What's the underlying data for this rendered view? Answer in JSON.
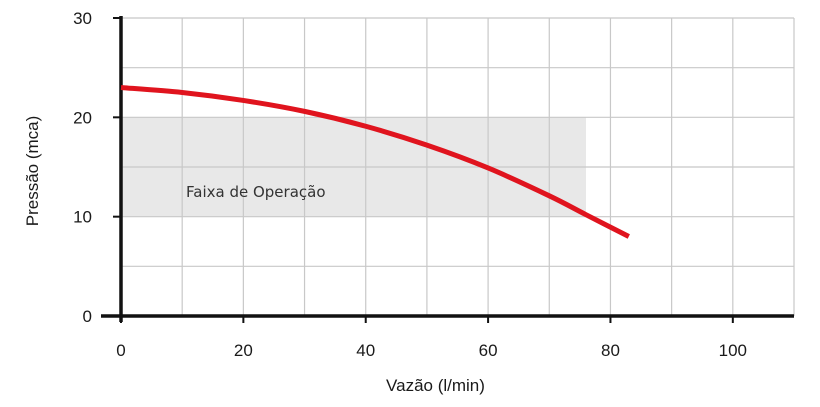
{
  "chart_data": {
    "type": "line",
    "title": "",
    "xlabel": "Vazão (l/min)",
    "ylabel": "Pressão (mca)",
    "xlim": [
      0,
      110
    ],
    "ylim": [
      0,
      30
    ],
    "xticks": [
      0,
      20,
      40,
      60,
      80,
      100
    ],
    "yticks": [
      0,
      10,
      20,
      30
    ],
    "grid": true,
    "series": [
      {
        "color": "#e0141e",
        "x": [
          0,
          10,
          20,
          30,
          40,
          50,
          60,
          70,
          76,
          83
        ],
        "y": [
          23.0,
          22.5,
          21.7,
          20.6,
          19.1,
          17.2,
          14.9,
          12.1,
          10.2,
          8.0
        ]
      }
    ],
    "annotations": [
      {
        "label": "Faixa de Operação",
        "type": "band",
        "y_range": [
          10,
          20
        ],
        "x_range": [
          0,
          76
        ],
        "fill": "#e8e8e8"
      }
    ]
  }
}
